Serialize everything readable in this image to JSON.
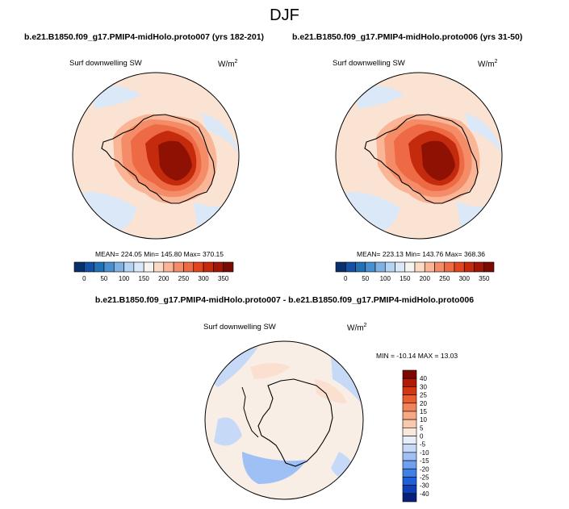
{
  "figure": {
    "title": "DJF",
    "diff_title": "b.e21.B1850.f09_g17.PMIP4-midHolo.proto007 - b.e21.B1850.f09_g17.PMIP4-midHolo.proto006"
  },
  "colors": {
    "abs_scale": [
      "#08306b",
      "#1450a6",
      "#2171b5",
      "#4a8fd0",
      "#7fb1e3",
      "#b5d3f3",
      "#dbe8f7",
      "#f7f4f0",
      "#fcd9c4",
      "#f9b596",
      "#f48d67",
      "#ee6a45",
      "#e2461f",
      "#c42a0c",
      "#a01705",
      "#7a0b02"
    ],
    "diff_scale": [
      "#08207a",
      "#0f3fb5",
      "#1f5fd9",
      "#3f7fe6",
      "#6f9ff0",
      "#9fc0f5",
      "#c6daf8",
      "#e6eefa",
      "#fbe8dc",
      "#f9c9ad",
      "#f6a784",
      "#f1835a",
      "#e95d2e",
      "#d6360f",
      "#b11a06",
      "#7d0801"
    ]
  },
  "chart_data": [
    {
      "type": "heatmap",
      "title": "b.e21.B1850.f09_g17.PMIP4-midHolo.proto007 (yrs 182-201)",
      "variable": "Surf downwelling SW",
      "units": "W/m",
      "units_exp": "2",
      "projection": "south-polar-stereographic",
      "stats": "MEAN= 224.05  Min= 145.80  Max= 370.15",
      "colorbar_orientation": "horizontal",
      "colorbar_ticks": [
        "0",
        "50",
        "100",
        "150",
        "200",
        "250",
        "300",
        "350"
      ]
    },
    {
      "type": "heatmap",
      "title": "b.e21.B1850.f09_g17.PMIP4-midHolo.proto006 (yrs 31-50)",
      "variable": "Surf downwelling SW",
      "units": "W/m",
      "units_exp": "2",
      "projection": "south-polar-stereographic",
      "stats": "MEAN= 223.13  Min= 143.76  Max= 368.36",
      "colorbar_orientation": "horizontal",
      "colorbar_ticks": [
        "0",
        "50",
        "100",
        "150",
        "200",
        "250",
        "300",
        "350"
      ]
    },
    {
      "type": "heatmap",
      "title": "b.e21.B1850.f09_g17.PMIP4-midHolo.proto007 - b.e21.B1850.f09_g17.PMIP4-midHolo.proto006",
      "variable": "Surf downwelling SW",
      "units": "W/m",
      "units_exp": "2",
      "projection": "south-polar-stereographic",
      "stats": "MIN = -10.14 MAX =  13.03",
      "colorbar_orientation": "vertical",
      "colorbar_ticks": [
        "40",
        "30",
        "25",
        "20",
        "15",
        "10",
        "5",
        "0",
        "-5",
        "-10",
        "-15",
        "-20",
        "-25",
        "-30",
        "-40"
      ]
    }
  ]
}
